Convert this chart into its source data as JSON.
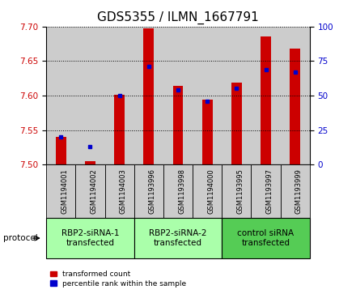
{
  "title": "GDS5355 / ILMN_1667791",
  "samples": [
    "GSM1194001",
    "GSM1194002",
    "GSM1194003",
    "GSM1193996",
    "GSM1193998",
    "GSM1194000",
    "GSM1193995",
    "GSM1193997",
    "GSM1193999"
  ],
  "red_values": [
    7.54,
    7.505,
    7.601,
    7.697,
    7.614,
    7.594,
    7.619,
    7.685,
    7.668
  ],
  "blue_values_pct": [
    20,
    13,
    50,
    71,
    54,
    46,
    55,
    69,
    67
  ],
  "ylim": [
    7.5,
    7.7
  ],
  "yticks": [
    7.5,
    7.55,
    7.6,
    7.65,
    7.7
  ],
  "right_yticks": [
    0,
    25,
    50,
    75,
    100
  ],
  "groups": [
    {
      "label": "RBP2-siRNA-1\ntransfected",
      "indices": [
        0,
        1,
        2
      ],
      "color": "#aaffaa"
    },
    {
      "label": "RBP2-siRNA-2\ntransfected",
      "indices": [
        3,
        4,
        5
      ],
      "color": "#aaffaa"
    },
    {
      "label": "control siRNA\ntransfected",
      "indices": [
        6,
        7,
        8
      ],
      "color": "#55cc55"
    }
  ],
  "bar_color_red": "#cc0000",
  "bar_color_blue": "#0000cc",
  "protocol_label": "protocol",
  "legend_red": "transformed count",
  "legend_blue": "percentile rank within the sample",
  "background_plot": "#ffffff",
  "background_sample": "#cccccc",
  "title_fontsize": 11,
  "tick_fontsize": 7.5,
  "sample_label_fontsize": 6.0,
  "group_label_fontsize": 7.5,
  "legend_fontsize": 6.5
}
